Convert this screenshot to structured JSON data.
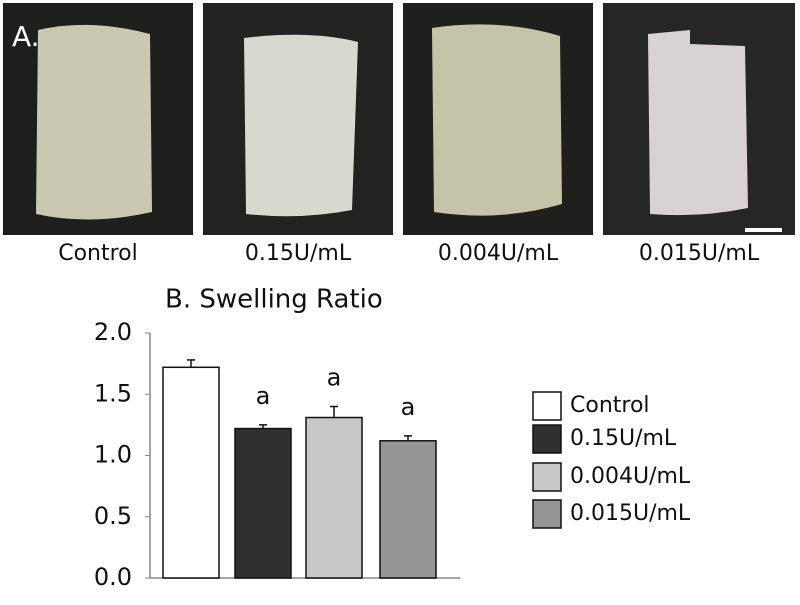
{
  "panel_a": {
    "label": "A.",
    "captions": [
      "Control",
      "0.15U/mL",
      "0.004U/mL",
      "0.015U/mL"
    ]
  },
  "chart_data": {
    "type": "bar",
    "title": "B. Swelling Ratio",
    "categories": [
      "Control",
      "0.15U/mL",
      "0.004U/mL",
      "0.015U/mL"
    ],
    "values": [
      1.72,
      1.22,
      1.31,
      1.12
    ],
    "errors": [
      0.06,
      0.03,
      0.09,
      0.04
    ],
    "significance": [
      null,
      "a",
      "a",
      "a"
    ],
    "colors": [
      "#ffffff",
      "#303030",
      "#c8c8c8",
      "#969696"
    ],
    "ylim": [
      0,
      2
    ],
    "yticks": [
      {
        "value": 0,
        "label": "0.0"
      },
      0.5,
      {
        "value": 1,
        "label": "1.0"
      },
      1.5,
      {
        "value": 2,
        "label": "2.0"
      }
    ],
    "legend": "right"
  }
}
